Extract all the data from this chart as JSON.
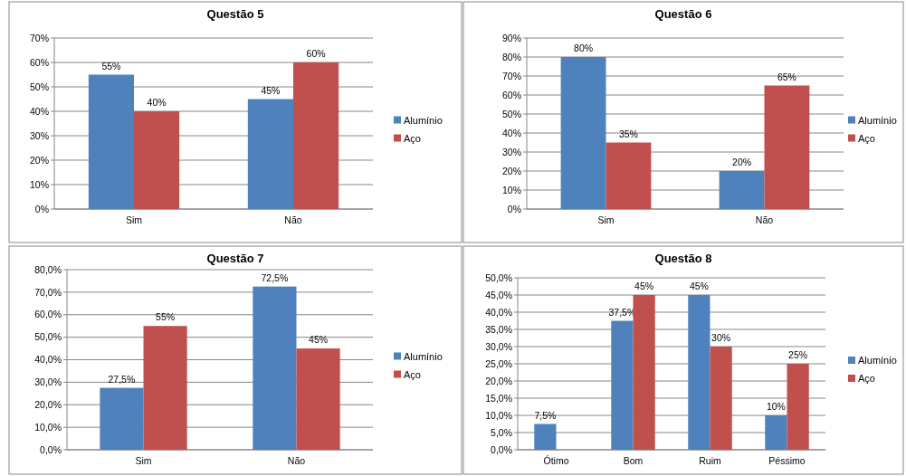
{
  "chart_data": [
    {
      "type": "bar",
      "title": "Questão 5",
      "categories": [
        "Sim",
        "Não"
      ],
      "ylim": [
        0,
        70
      ],
      "yticks": [
        {
          "value": 0,
          "label": "0%"
        },
        {
          "value": 10,
          "label": "10%"
        },
        {
          "value": 20,
          "label": "20%"
        },
        {
          "value": 30,
          "label": "30%"
        },
        {
          "value": 40,
          "label": "40%"
        },
        {
          "value": 50,
          "label": "50%"
        },
        {
          "value": 60,
          "label": "60%"
        },
        {
          "value": 70,
          "label": "70%"
        }
      ],
      "grid": "y",
      "legend": "right",
      "series": [
        {
          "name": "Alumínio",
          "color": "#4f81bd",
          "values": [
            55,
            45
          ],
          "value_labels": [
            "55%",
            "45%"
          ]
        },
        {
          "name": "Aço",
          "color": "#c0504d",
          "values": [
            40,
            60
          ],
          "value_labels": [
            "40%",
            "60%"
          ]
        }
      ]
    },
    {
      "type": "bar",
      "title": "Questão 6",
      "categories": [
        "Sim",
        "Não"
      ],
      "ylim": [
        0,
        90
      ],
      "yticks": [
        {
          "value": 0,
          "label": "0%"
        },
        {
          "value": 10,
          "label": "10%"
        },
        {
          "value": 20,
          "label": "20%"
        },
        {
          "value": 30,
          "label": "30%"
        },
        {
          "value": 40,
          "label": "40%"
        },
        {
          "value": 50,
          "label": "50%"
        },
        {
          "value": 60,
          "label": "60%"
        },
        {
          "value": 70,
          "label": "70%"
        },
        {
          "value": 80,
          "label": "80%"
        },
        {
          "value": 90,
          "label": "90%"
        }
      ],
      "grid": "y",
      "legend": "right",
      "series": [
        {
          "name": "Alumínio",
          "color": "#4f81bd",
          "values": [
            80,
            20
          ],
          "value_labels": [
            "80%",
            "20%"
          ]
        },
        {
          "name": "Aço",
          "color": "#c0504d",
          "values": [
            35,
            65
          ],
          "value_labels": [
            "35%",
            "65%"
          ]
        }
      ]
    },
    {
      "type": "bar",
      "title": "Questão 7",
      "categories": [
        "Sim",
        "Não"
      ],
      "ylim": [
        0,
        80
      ],
      "yticks": [
        {
          "value": 0,
          "label": "0,0%"
        },
        {
          "value": 10,
          "label": "10,0%"
        },
        {
          "value": 20,
          "label": "20,0%"
        },
        {
          "value": 30,
          "label": "30,0%"
        },
        {
          "value": 40,
          "label": "40,0%"
        },
        {
          "value": 50,
          "label": "50,0%"
        },
        {
          "value": 60,
          "label": "60,0%"
        },
        {
          "value": 70,
          "label": "70,0%"
        },
        {
          "value": 80,
          "label": "80,0%"
        }
      ],
      "grid": "y",
      "legend": "right",
      "series": [
        {
          "name": "Alumínio",
          "color": "#4f81bd",
          "values": [
            27.5,
            72.5
          ],
          "value_labels": [
            "27,5%",
            "72,5%"
          ]
        },
        {
          "name": "Aço",
          "color": "#c0504d",
          "values": [
            55,
            45
          ],
          "value_labels": [
            "55%",
            "45%"
          ]
        }
      ]
    },
    {
      "type": "bar",
      "title": "Questão 8",
      "categories": [
        "Ótimo",
        "Bom",
        "Ruim",
        "Péssimo"
      ],
      "ylim": [
        0,
        50
      ],
      "yticks": [
        {
          "value": 0,
          "label": "0,0%"
        },
        {
          "value": 5,
          "label": "5,0%"
        },
        {
          "value": 10,
          "label": "10,0%"
        },
        {
          "value": 15,
          "label": "15,0%"
        },
        {
          "value": 20,
          "label": "20,0%"
        },
        {
          "value": 25,
          "label": "25,0%"
        },
        {
          "value": 30,
          "label": "30,0%"
        },
        {
          "value": 35,
          "label": "35,0%"
        },
        {
          "value": 40,
          "label": "40,0%"
        },
        {
          "value": 45,
          "label": "45,0%"
        },
        {
          "value": 50,
          "label": "50,0%"
        }
      ],
      "grid": "y",
      "legend": "right",
      "series": [
        {
          "name": "Alumínio",
          "color": "#4f81bd",
          "values": [
            7.5,
            37.5,
            45,
            10
          ],
          "value_labels": [
            "7,5%",
            "37,5%",
            "45%",
            "10%"
          ]
        },
        {
          "name": "Aço",
          "color": "#c0504d",
          "values": [
            null,
            45,
            30,
            25
          ],
          "value_labels": [
            null,
            "45%",
            "30%",
            "25%"
          ]
        }
      ]
    }
  ]
}
